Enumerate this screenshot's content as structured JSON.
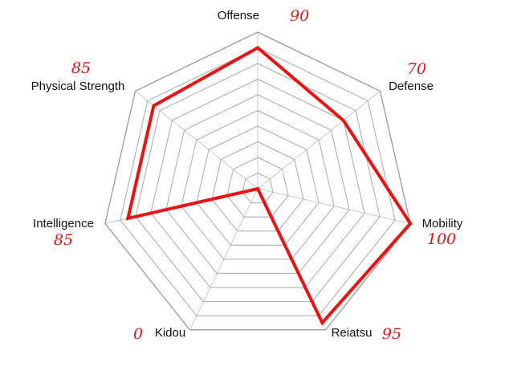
{
  "chart_data": {
    "type": "radar",
    "title": "",
    "axes": [
      "Offense",
      "Defense",
      "Mobility",
      "Reiatsu",
      "Kidou",
      "Intelligence",
      "Physical Strength"
    ],
    "values": [
      90,
      70,
      100,
      95,
      0,
      85,
      85
    ],
    "value_labels": [
      "90",
      "70",
      "100",
      "95",
      "0",
      "85",
      "85"
    ],
    "range": [
      0,
      100
    ],
    "rings": 10,
    "grid": true,
    "legend": "none",
    "colors": {
      "series": "#ee1111",
      "value_labels": "#e01515",
      "grid": "#a8a8a8",
      "outer_ring": "#9a9a9a"
    }
  }
}
